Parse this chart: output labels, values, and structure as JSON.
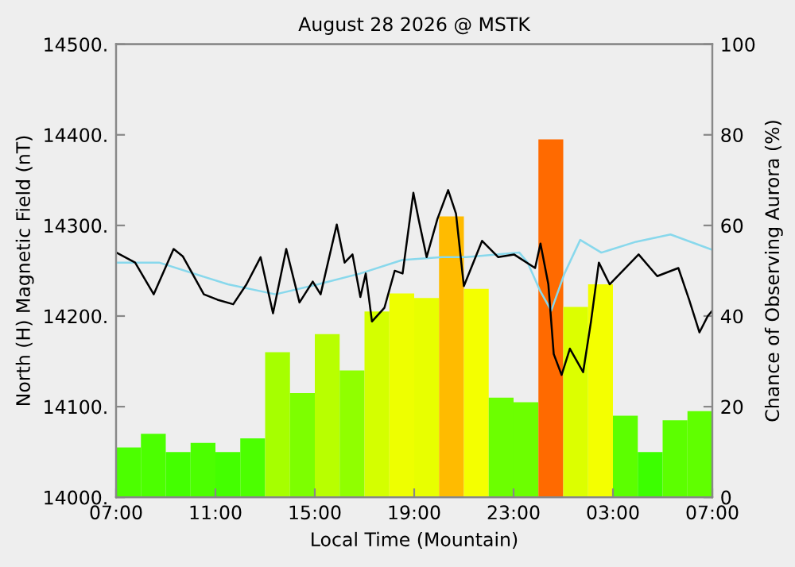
{
  "chart_data": {
    "type": "bar",
    "title": "August 28 2026 @ MSTK",
    "xlabel": "Local Time (Mountain)",
    "ylabel": "North (H) Magnetic Field (nT)",
    "y2label": "Chance of Observing Aurora (%)",
    "xlim": [
      "2026-08-28T07:00",
      "2026-08-29T07:00"
    ],
    "xticks": [
      {
        "value": "2026-08-28T07:00",
        "label": "07:00"
      },
      {
        "value": "2026-08-28T11:00",
        "label": "11:00"
      },
      {
        "value": "2026-08-28T15:00",
        "label": "15:00"
      },
      {
        "value": "2026-08-28T19:00",
        "label": "19:00"
      },
      {
        "value": "2026-08-28T23:00",
        "label": "23:00"
      },
      {
        "value": "2026-08-29T03:00",
        "label": "03:00"
      },
      {
        "value": "2026-08-29T07:00",
        "label": "07:00"
      }
    ],
    "ylim": [
      14000,
      14500
    ],
    "yticks": [
      {
        "value": 14000,
        "label": "14000."
      },
      {
        "value": 14100,
        "label": "14100."
      },
      {
        "value": 14200,
        "label": "14200."
      },
      {
        "value": 14300,
        "label": "14300."
      },
      {
        "value": 14400,
        "label": "14400."
      },
      {
        "value": 14500,
        "label": "14500."
      }
    ],
    "y2lim": [
      0,
      100
    ],
    "y2ticks": [
      0,
      20,
      40,
      60,
      80,
      100
    ],
    "grid": false,
    "legend": false,
    "series": [
      {
        "axis": "y2",
        "x": [
          "2026-08-28T07:30",
          "2026-08-28T08:30",
          "2026-08-28T09:30",
          "2026-08-28T10:30",
          "2026-08-28T11:30",
          "2026-08-28T12:30",
          "2026-08-28T13:30",
          "2026-08-28T14:30",
          "2026-08-28T15:30",
          "2026-08-28T16:30",
          "2026-08-28T17:30",
          "2026-08-28T18:30",
          "2026-08-28T19:30",
          "2026-08-28T20:30",
          "2026-08-28T21:30",
          "2026-08-28T22:30",
          "2026-08-28T23:30",
          "2026-08-29T00:30",
          "2026-08-29T01:30",
          "2026-08-29T02:30",
          "2026-08-29T03:30",
          "2026-08-29T04:30",
          "2026-08-29T05:30",
          "2026-08-29T06:30"
        ],
        "values": [
          11,
          14,
          10,
          12,
          10,
          13,
          32,
          23,
          36,
          28,
          41,
          45,
          44,
          62,
          46,
          22,
          21,
          79,
          42,
          47,
          18,
          10,
          17,
          19
        ],
        "colors": [
          "#4cff00",
          "#4cff00",
          "#44ff00",
          "#4cff00",
          "#44ff00",
          "#4cff00",
          "#a6ff00",
          "#7dff00",
          "#b8ff00",
          "#90ff00",
          "#d4ff00",
          "#eeff00",
          "#e8ff00",
          "#ffbb00",
          "#f4ff00",
          "#6cff00",
          "#6cff00",
          "#ff6a00",
          "#dcff00",
          "#f4ff00",
          "#5cff00",
          "#3cff00",
          "#5cff00",
          "#60ff00"
        ]
      },
      {
        "type": "line",
        "color": "#88d8ec",
        "x": [
          "2026-08-28T07:01",
          "2026-08-28T08:44",
          "2026-08-28T11:30",
          "2026-08-28T13:25",
          "2026-08-28T15:08",
          "2026-08-28T16:50",
          "2026-08-28T18:32",
          "2026-08-28T20:08",
          "2026-08-28T21:06",
          "2026-08-28T23:14",
          "2026-08-28T23:34",
          "2026-08-29T00:05",
          "2026-08-29T00:31",
          "2026-08-29T01:03",
          "2026-08-29T01:41",
          "2026-08-29T02:32",
          "2026-08-29T03:56",
          "2026-08-29T05:19",
          "2026-08-29T07:00"
        ],
        "values": [
          14259,
          14259,
          14235,
          14224,
          14235,
          14247,
          14262,
          14265,
          14265,
          14270,
          14259,
          14227,
          14206,
          14247,
          14284,
          14270,
          14282,
          14290,
          14273
        ]
      },
      {
        "type": "line",
        "color": "#000000",
        "x": [
          "2026-08-28T07:01",
          "2026-08-28T07:46",
          "2026-08-28T08:31",
          "2026-08-28T09:19",
          "2026-08-28T09:41",
          "2026-08-28T10:32",
          "2026-08-28T11:05",
          "2026-08-28T11:43",
          "2026-08-28T12:15",
          "2026-08-28T12:49",
          "2026-08-28T13:19",
          "2026-08-28T13:51",
          "2026-08-28T14:23",
          "2026-08-28T14:55",
          "2026-08-28T15:14",
          "2026-08-28T15:53",
          "2026-08-28T16:12",
          "2026-08-28T16:31",
          "2026-08-28T16:50",
          "2026-08-28T17:03",
          "2026-08-28T17:18",
          "2026-08-28T17:48",
          "2026-08-28T18:13",
          "2026-08-28T18:32",
          "2026-08-28T18:58",
          "2026-08-28T19:11",
          "2026-08-28T19:30",
          "2026-08-28T19:56",
          "2026-08-28T20:22",
          "2026-08-28T20:41",
          "2026-08-28T21:00",
          "2026-08-28T21:44",
          "2026-08-28T22:23",
          "2026-08-28T23:01",
          "2026-08-28T23:52",
          "2026-08-29T00:05",
          "2026-08-29T00:24",
          "2026-08-29T00:37",
          "2026-08-29T00:56",
          "2026-08-29T01:16",
          "2026-08-29T01:48",
          "2026-08-29T02:07",
          "2026-08-29T02:26",
          "2026-08-29T02:52",
          "2026-08-29T03:30",
          "2026-08-29T04:02",
          "2026-08-29T04:47",
          "2026-08-29T05:38",
          "2026-08-29T06:04",
          "2026-08-29T06:29",
          "2026-08-29T06:49",
          "2026-08-29T07:00"
        ],
        "values": [
          14270,
          14259,
          14224,
          14274,
          14266,
          14224,
          14218,
          14213,
          14235,
          14265,
          14203,
          14274,
          14215,
          14238,
          14224,
          14301,
          14259,
          14268,
          14221,
          14247,
          14194,
          14209,
          14250,
          14247,
          14336,
          14306,
          14265,
          14307,
          14339,
          14313,
          14233,
          14283,
          14265,
          14268,
          14253,
          14280,
          14235,
          14158,
          14135,
          14164,
          14138,
          14194,
          14259,
          14235,
          14253,
          14268,
          14244,
          14253,
          14218,
          14182,
          14200,
          14206
        ]
      }
    ]
  }
}
